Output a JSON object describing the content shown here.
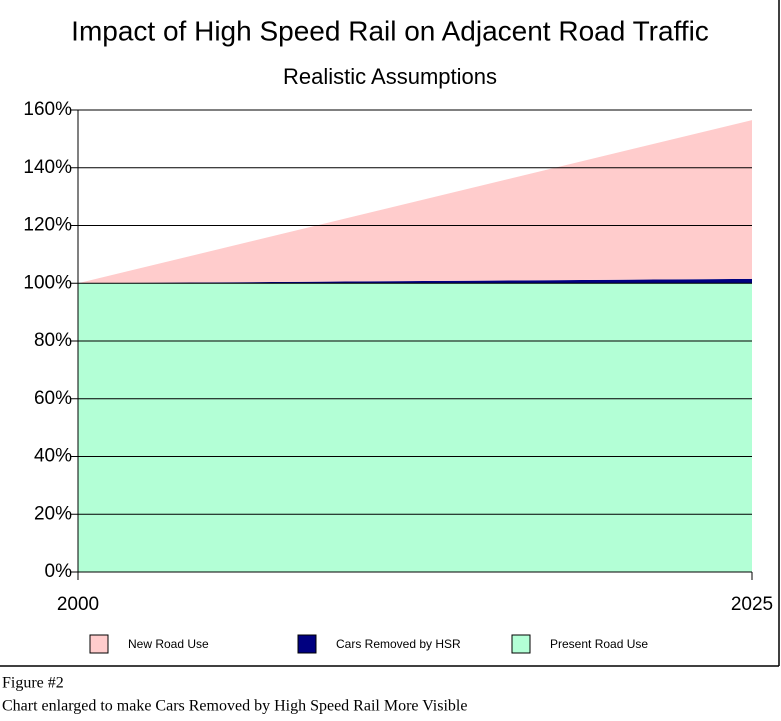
{
  "chart_data": {
    "type": "stacked_area",
    "title": "Impact of High Speed Rail  on Adjacent Road Traffic",
    "subtitle": "Realistic Assumptions",
    "x": [
      2000,
      2025
    ],
    "xlim": [
      2000,
      2025
    ],
    "xticks": [
      2000,
      2025
    ],
    "ylim": [
      0,
      160
    ],
    "yticks": [
      {
        "value": 0,
        "label": "0%"
      },
      {
        "value": 20,
        "label": "20%"
      },
      {
        "value": 40,
        "label": "40%"
      },
      {
        "value": 60,
        "label": "60%"
      },
      {
        "value": 80,
        "label": "80%"
      },
      {
        "value": 100,
        "label": "100%"
      },
      {
        "value": 120,
        "label": "120%"
      },
      {
        "value": 140,
        "label": "140%"
      },
      {
        "value": 160,
        "label": "160%"
      }
    ],
    "grid": true,
    "series": [
      {
        "name": "Present Road Use",
        "color": "#b3ffd6",
        "values": [
          100,
          100
        ]
      },
      {
        "name": "Cars Removed by HSR",
        "color": "#000080",
        "values": [
          0,
          1.5
        ]
      },
      {
        "name": "New Road Use",
        "color": "#ffcccc",
        "values": [
          0,
          55
        ]
      }
    ],
    "legend_order": [
      2,
      1,
      0
    ],
    "annotations": [
      "Figure #2",
      "Chart enlarged to make Cars Removed by High Speed Rail More Visible"
    ]
  }
}
